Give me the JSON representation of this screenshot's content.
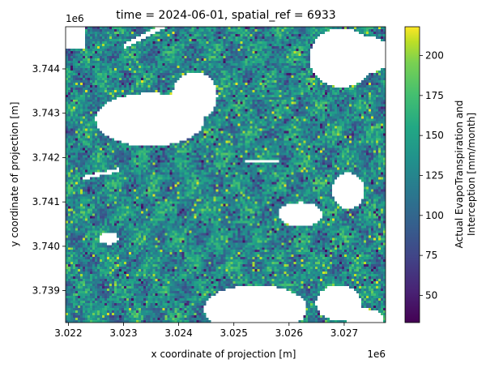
{
  "chart_data": {
    "type": "heatmap",
    "title": "time = 2024-06-01, spatial_ref = 6933",
    "xlabel": "x coordinate of projection [m]",
    "ylabel": "y coordinate of projection [m]",
    "x_offset_label": "1e6",
    "y_offset_label": "1e6",
    "xlim": [
      3.02195,
      3.02775
    ],
    "ylim": [
      3.73828,
      3.74495
    ],
    "x_ticks": [
      {
        "value": 3.022,
        "label": "3.022"
      },
      {
        "value": 3.023,
        "label": "3.023"
      },
      {
        "value": 3.024,
        "label": "3.024"
      },
      {
        "value": 3.025,
        "label": "3.025"
      },
      {
        "value": 3.026,
        "label": "3.026"
      },
      {
        "value": 3.027,
        "label": "3.027"
      }
    ],
    "y_ticks": [
      {
        "value": 3.739,
        "label": "3.739"
      },
      {
        "value": 3.74,
        "label": "3.740"
      },
      {
        "value": 3.741,
        "label": "3.741"
      },
      {
        "value": 3.742,
        "label": "3.742"
      },
      {
        "value": 3.743,
        "label": "3.743"
      },
      {
        "value": 3.744,
        "label": "3.744"
      }
    ],
    "colorbar": {
      "label_line1": "Actual EvapoTranspiration and",
      "label_line2": "Interception [mm/month]",
      "colormap": "viridis",
      "vmin": 33,
      "vmax": 218,
      "ticks": [
        {
          "value": 50,
          "label": "50"
        },
        {
          "value": 75,
          "label": "75"
        },
        {
          "value": 100,
          "label": "100"
        },
        {
          "value": 125,
          "label": "125"
        },
        {
          "value": 150,
          "label": "150"
        },
        {
          "value": 175,
          "label": "175"
        },
        {
          "value": 200,
          "label": "200"
        }
      ]
    },
    "typical_value_range": [
      90,
      170
    ],
    "nodata_color": "#ffffff",
    "grid": false,
    "legend": "none"
  }
}
